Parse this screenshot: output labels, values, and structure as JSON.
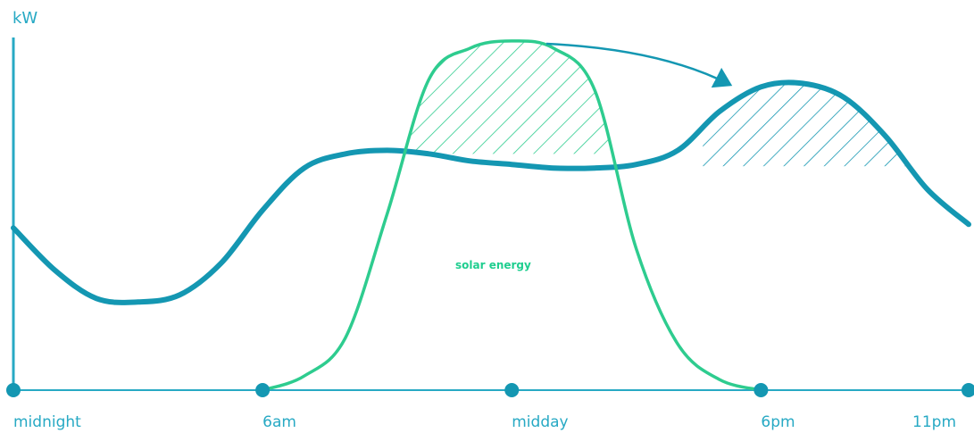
{
  "chart_data": {
    "type": "line",
    "ylabel": "kW",
    "xlabel": "",
    "x_ticks": [
      "midnight",
      "6am",
      "midday",
      "6pm",
      "11pm"
    ],
    "series": [
      {
        "name": "",
        "color": "#1497b2",
        "x": [
          0,
          1,
          2,
          3,
          4,
          5,
          6,
          7,
          8,
          9,
          10,
          11,
          12,
          13,
          14,
          15,
          16,
          17,
          18,
          19,
          20,
          21,
          22,
          23
        ],
        "y": [
          4.6,
          3.4,
          2.6,
          2.5,
          2.7,
          3.6,
          5.1,
          6.3,
          6.7,
          6.8,
          6.7,
          6.5,
          6.4,
          6.3,
          6.3,
          6.4,
          6.8,
          7.9,
          8.6,
          8.7,
          8.3,
          7.2,
          5.7,
          4.7
        ]
      },
      {
        "name": "solar energy",
        "color": "#2ecc8f",
        "x": [
          6,
          7,
          8,
          9,
          10,
          11,
          12,
          13,
          14,
          15,
          16,
          17,
          18
        ],
        "y": [
          0,
          0.4,
          1.5,
          5.0,
          8.8,
          9.7,
          9.9,
          9.7,
          8.5,
          4.0,
          1.3,
          0.3,
          0
        ]
      }
    ],
    "series_label": "solar energy",
    "xlim": [
      0,
      23
    ],
    "ylim": [
      0,
      10
    ],
    "grid": false,
    "legend": "none",
    "annotations": [
      "hatched solar surplus above demand around midday",
      "arrow shifting surplus toward evening peak"
    ]
  }
}
